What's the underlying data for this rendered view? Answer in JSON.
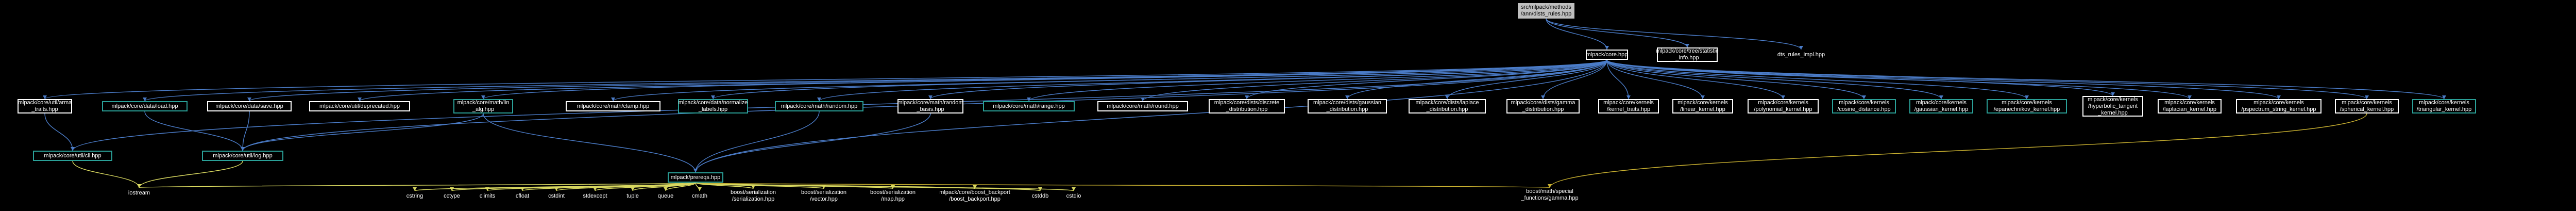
{
  "graph": {
    "colors": {
      "background": "#000000",
      "edge_include": "#4b7cc8",
      "edge_std": "#d8d860",
      "edge_boost": "#c8b030",
      "doc_border": "#2aa198",
      "root_fill": "#bfbfbf"
    },
    "root": {
      "label": "src/mlpack/methods\n/ann/dists_rules.hpp"
    },
    "nodes": {
      "core_hpp": "mlpack/core.hpp",
      "tree_stat": "mlpack/core/tree/statistic\n_info.hpp",
      "dts_impl": "dts_rules_impl.hpp",
      "arma_traits": "mlpack/core/util/arma\n_traits.hpp",
      "io_hpp": "mlpack/core/data/load.hpp",
      "save_hpp": "mlpack/core/data/save.hpp",
      "deprecated": "mlpack/core/util/deprecated.hpp",
      "math_lin": "mlpack/core/math/lin\n_alg.hpp",
      "clamp": "mlpack/core/math/clamp.hpp",
      "normalize": "mlpack/core/data/normalize\n_labels.hpp",
      "random": "mlpack/core/math/random.hpp",
      "random_basis": "mlpack/core/math/random\n_basis.hpp",
      "range": "mlpack/core/math/range.hpp",
      "round": "mlpack/core/math/round.hpp",
      "discrete": "mlpack/core/dists/discrete\n_distribution.hpp",
      "gaussian": "mlpack/core/dists/gaussian\n_distribution.hpp",
      "laplace": "mlpack/core/dists/laplace\n_distribution.hpp",
      "gamma": "mlpack/core/dists/gamma\n_distribution.hpp",
      "kernel_traits": "mlpack/core/kernels\n/kernel_traits.hpp",
      "linear_kernel": "mlpack/core/kernels\n/linear_kernel.hpp",
      "poly_kernel": "mlpack/core/kernels\n/polynomial_kernel.hpp",
      "cosine": "mlpack/core/kernels\n/cosine_distance.hpp",
      "gauss_kernel": "mlpack/core/kernels\n/gaussian_kernel.hpp",
      "epan": "mlpack/core/kernels\n/epanechnikov_kernel.hpp",
      "hyper": "mlpack/core/kernels\n/hyperbolic_tangent\n_kernel.hpp",
      "laplacian": "mlpack/core/kernels\n/laplacian_kernel.hpp",
      "pspec": "mlpack/core/kernels\n/pspectrum_string_kernel.hpp",
      "spherical": "mlpack/core/kernels\n/spherical_kernel.hpp",
      "triangular": "mlpack/core/kernels\n/triangular_kernel.hpp",
      "cli": "mlpack/core/util/cli.hpp",
      "log": "mlpack/core/util/log.hpp",
      "prereqs": "mlpack/prereqs.hpp",
      "iostream": "iostream",
      "cstring": "cstring",
      "cctype": "cctype",
      "climits": "climits",
      "cfloat": "cfloat",
      "cstdint": "cstdint",
      "stdexcept": "stdexcept",
      "tuple": "tuple",
      "queue": "queue",
      "cmath": "cmath",
      "boost_ser": "boost/serialization\n/serialization.hpp",
      "boost_vec": "boost/serialization\n/vector.hpp",
      "boost_map": "boost/serialization\n/map.hpp",
      "boost_backport": "mlpack/core/boost_backport\n/boost_backport.hpp",
      "cstddb": "cstddb",
      "cstdio": "cstdio",
      "gamma_boost": "boost/math/special\n_functions/gamma.hpp"
    }
  }
}
